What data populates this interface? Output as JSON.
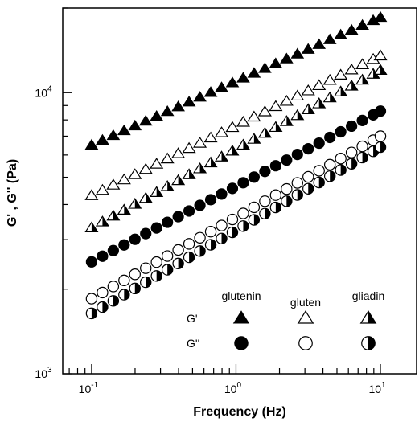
{
  "chart_data": {
    "type": "scatter",
    "title": "",
    "xlabel": "Frequency (Hz)",
    "ylabel": "G' , G'' (Pa)",
    "xscale": "log",
    "yscale": "log",
    "xlim": [
      0.0631,
      17.8
    ],
    "ylim": [
      1000,
      20000
    ],
    "x_ticks": [
      {
        "value": 0.1,
        "base": "10",
        "exp": "-1"
      },
      {
        "value": 1,
        "base": "10",
        "exp": "0"
      },
      {
        "value": 10,
        "base": "10",
        "exp": "1"
      }
    ],
    "y_ticks": [
      {
        "value": 1000,
        "base": "10",
        "exp": "3"
      },
      {
        "value": 10000,
        "base": "10",
        "exp": "4"
      }
    ],
    "grid": false,
    "legend": {
      "placement": "bottom-right",
      "column_headers": [
        "glutenin",
        "gluten",
        "gliadin"
      ],
      "row_labels": [
        "G'",
        "G''"
      ]
    },
    "series": [
      {
        "sample": "glutenin",
        "modulus": "G'",
        "marker": "triangle",
        "fill": "full",
        "y_start": 6500,
        "y_end": 18500
      },
      {
        "sample": "gluten",
        "modulus": "G'",
        "marker": "triangle",
        "fill": "open",
        "y_start": 4300,
        "y_end": 13500
      },
      {
        "sample": "gliadin",
        "modulus": "G'",
        "marker": "triangle",
        "fill": "half",
        "y_start": 3300,
        "y_end": 12000
      },
      {
        "sample": "glutenin",
        "modulus": "G''",
        "marker": "circle",
        "fill": "full",
        "y_start": 2500,
        "y_end": 8600
      },
      {
        "sample": "gluten",
        "modulus": "G''",
        "marker": "circle",
        "fill": "open",
        "y_start": 1850,
        "y_end": 7000
      },
      {
        "sample": "gliadin",
        "modulus": "G''",
        "marker": "circle",
        "fill": "half",
        "y_start": 1640,
        "y_end": 6400
      }
    ],
    "x_points": [
      0.1,
      0.1189,
      0.1413,
      0.1679,
      0.1995,
      0.2371,
      0.2818,
      0.3349,
      0.398,
      0.473,
      0.5623,
      0.6683,
      0.7943,
      0.944,
      1.122,
      1.333,
      1.585,
      1.884,
      2.239,
      2.661,
      3.162,
      3.758,
      4.467,
      5.309,
      6.31,
      7.499,
      8.913,
      10
    ]
  }
}
